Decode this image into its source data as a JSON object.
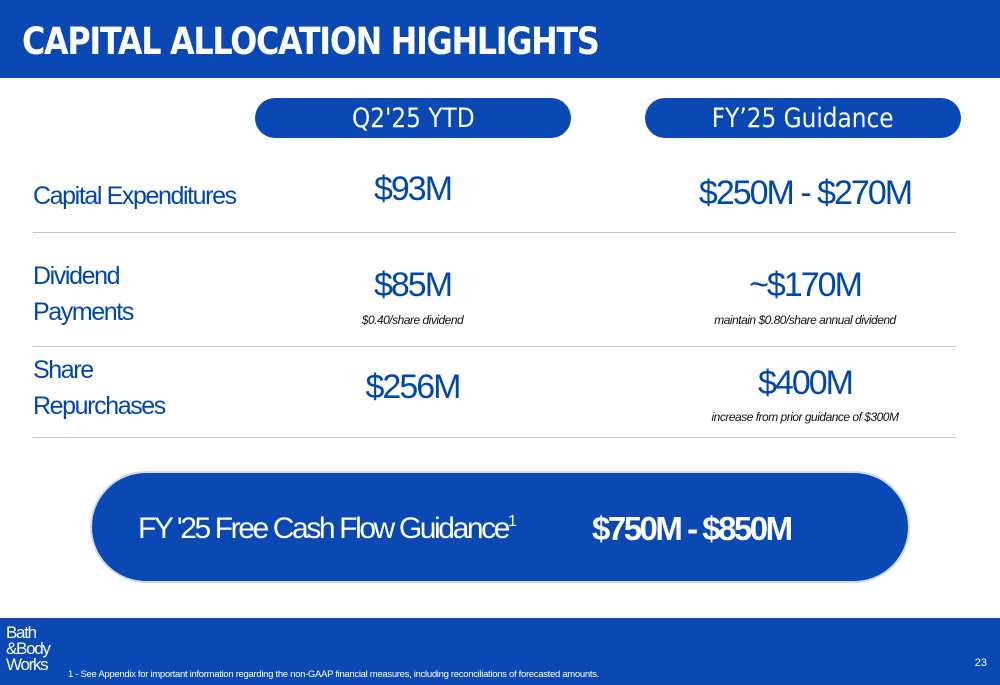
{
  "header": {
    "title": "CAPITAL ALLOCATION HIGHLIGHTS"
  },
  "columns": {
    "q2_ytd": "Q2'25 YTD",
    "fy_guidance": "FY’25 Guidance"
  },
  "rows": [
    {
      "label_lines": [
        "Capital Expenditures"
      ],
      "q2_value": "$93M",
      "q2_note": "",
      "fy_value": "$250M - $270M",
      "fy_note": ""
    },
    {
      "label_lines": [
        "Dividend",
        "Payments"
      ],
      "q2_value": "$85M",
      "q2_note": "$0.40/share dividend",
      "fy_value": "~$170M",
      "fy_note": "maintain $0.80/share annual dividend"
    },
    {
      "label_lines": [
        "Share",
        "Repurchases"
      ],
      "q2_value": "$256M",
      "q2_note": "",
      "fy_value": "$400M",
      "fy_note": "increase from prior guidance of $300M"
    }
  ],
  "fcf": {
    "label": "FY '25 Free Cash Flow  Guidance",
    "superscript": "1",
    "value": "$750M - $850M"
  },
  "footer": {
    "logo_lines": [
      "Bath",
      "&Body",
      "Works"
    ],
    "footnote": "1 - See Appendix for important information regarding the non-GAAP financial measures, including reconciliations of forecasted amounts.",
    "page_number": "23"
  },
  "colors": {
    "brand_blue": "#0a48b4",
    "text_blue": "#0047ab",
    "divider": "#c8c8c8"
  }
}
